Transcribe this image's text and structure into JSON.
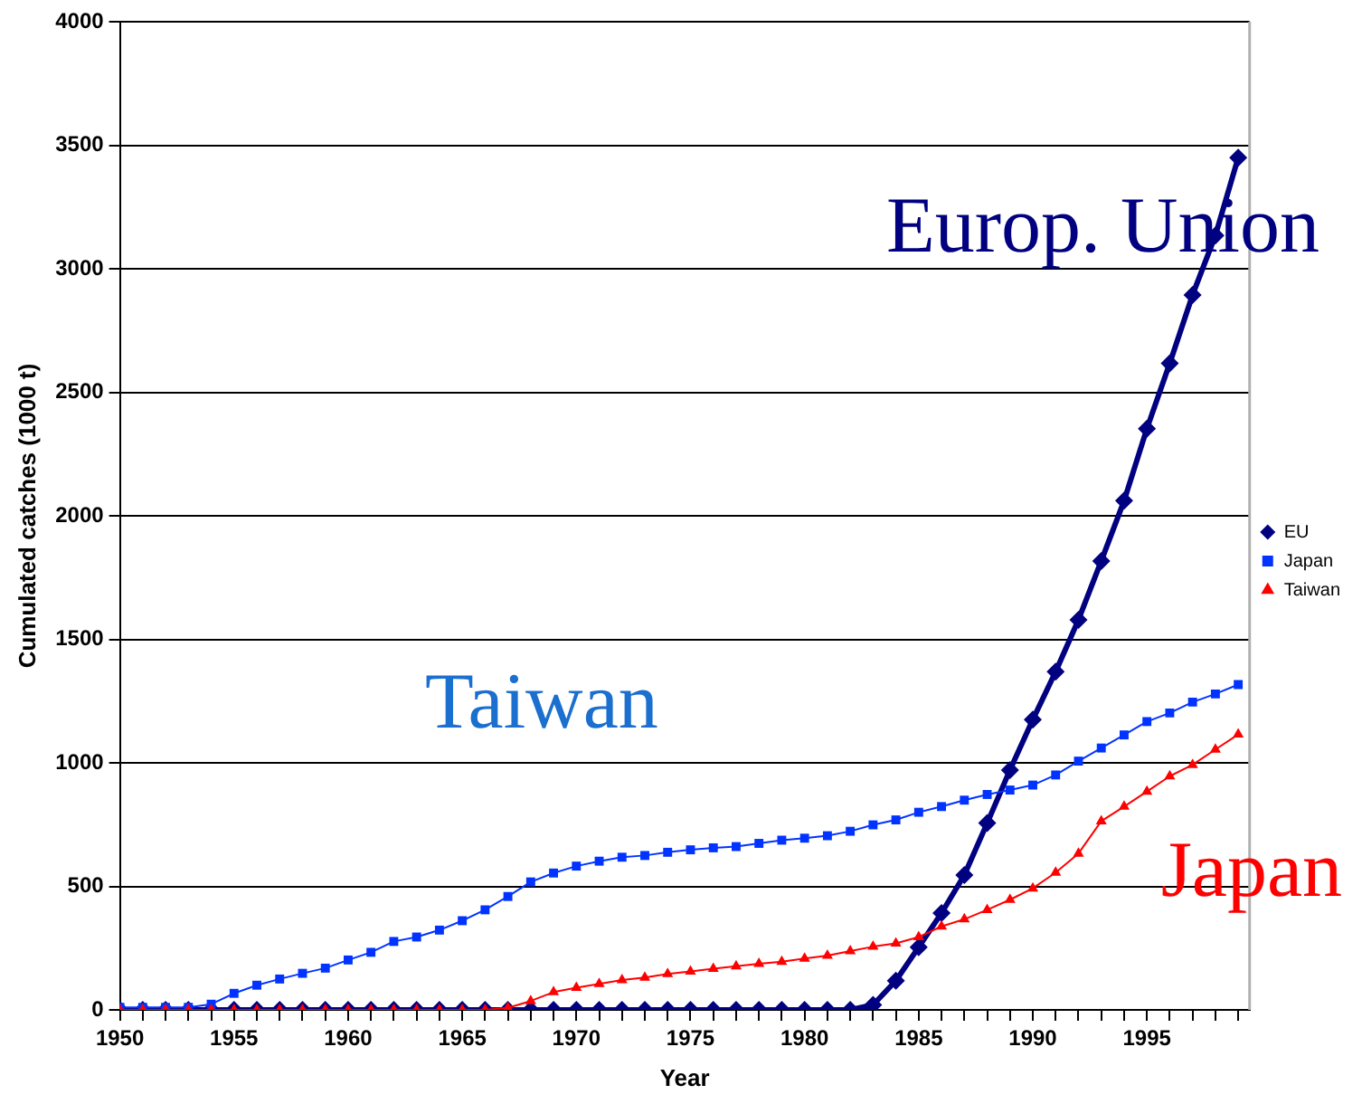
{
  "chart_data": {
    "type": "line",
    "xlabel": "Year",
    "ylabel": "Cumulated catches (1000 t)",
    "x": [
      1950,
      1951,
      1952,
      1953,
      1954,
      1955,
      1956,
      1957,
      1958,
      1959,
      1960,
      1961,
      1962,
      1963,
      1964,
      1965,
      1966,
      1967,
      1968,
      1969,
      1970,
      1971,
      1972,
      1973,
      1974,
      1975,
      1976,
      1977,
      1978,
      1979,
      1980,
      1981,
      1982,
      1983,
      1984,
      1985,
      1986,
      1987,
      1988,
      1989,
      1990,
      1991,
      1992,
      1993,
      1994,
      1995,
      1996,
      1997,
      1998,
      1999
    ],
    "series": [
      {
        "name": "EU",
        "color": "#000080",
        "marker": "diamond",
        "values": [
          0,
          0,
          0,
          0,
          0,
          0,
          0,
          0,
          0,
          0,
          0,
          0,
          0,
          0,
          0,
          0,
          0,
          0,
          0,
          0,
          0,
          0,
          0,
          0,
          0,
          0,
          0,
          0,
          0,
          0,
          0,
          0,
          0,
          20,
          118,
          254,
          392,
          546,
          756,
          971,
          1175,
          1369,
          1579,
          1817,
          2061,
          2353,
          2617,
          2894,
          3135,
          3450
        ]
      },
      {
        "name": "Japan",
        "color": "#0033ff",
        "marker": "square",
        "values": [
          10,
          10,
          10,
          10,
          23,
          67,
          100,
          125,
          148,
          169,
          202,
          233,
          277,
          295,
          323,
          361,
          405,
          459,
          518,
          554,
          582,
          602,
          618,
          625,
          638,
          648,
          656,
          661,
          674,
          687,
          695,
          705,
          723,
          749,
          769,
          800,
          823,
          849,
          872,
          890,
          910,
          951,
          1007,
          1060,
          1113,
          1167,
          1202,
          1246,
          1279,
          1317
        ]
      },
      {
        "name": "Taiwan",
        "color": "#ff0000",
        "marker": "triangle",
        "values": [
          0,
          0,
          0,
          0,
          0,
          0,
          0,
          0,
          0,
          0,
          0,
          0,
          0,
          0,
          0,
          0,
          0,
          8,
          36,
          72,
          90,
          105,
          121,
          131,
          146,
          156,
          167,
          177,
          187,
          195,
          208,
          220,
          238,
          256,
          269,
          295,
          338,
          367,
          405,
          446,
          492,
          556,
          633,
          764,
          823,
          884,
          946,
          992,
          1054,
          1115
        ]
      }
    ],
    "xlim": [
      1950,
      1999.5
    ],
    "xticks": [
      1950,
      {
        "value": 1951,
        "label": null
      },
      {
        "value": 1952,
        "label": null
      },
      {
        "value": 1953,
        "label": null
      },
      {
        "value": 1954,
        "label": null
      },
      1955,
      {
        "value": 1956,
        "label": null
      },
      {
        "value": 1957,
        "label": null
      },
      {
        "value": 1958,
        "label": null
      },
      {
        "value": 1959,
        "label": null
      },
      1960,
      {
        "value": 1961,
        "label": null
      },
      {
        "value": 1962,
        "label": null
      },
      {
        "value": 1963,
        "label": null
      },
      {
        "value": 1964,
        "label": null
      },
      1965,
      {
        "value": 1966,
        "label": null
      },
      {
        "value": 1967,
        "label": null
      },
      {
        "value": 1968,
        "label": null
      },
      {
        "value": 1969,
        "label": null
      },
      1970,
      {
        "value": 1971,
        "label": null
      },
      {
        "value": 1972,
        "label": null
      },
      {
        "value": 1973,
        "label": null
      },
      {
        "value": 1974,
        "label": null
      },
      1975,
      {
        "value": 1976,
        "label": null
      },
      {
        "value": 1977,
        "label": null
      },
      {
        "value": 1978,
        "label": null
      },
      {
        "value": 1979,
        "label": null
      },
      1980,
      {
        "value": 1981,
        "label": null
      },
      {
        "value": 1982,
        "label": null
      },
      {
        "value": 1983,
        "label": null
      },
      {
        "value": 1984,
        "label": null
      },
      1985,
      {
        "value": 1986,
        "label": null
      },
      {
        "value": 1987,
        "label": null
      },
      {
        "value": 1988,
        "label": null
      },
      {
        "value": 1989,
        "label": null
      },
      1990,
      {
        "value": 1991,
        "label": null
      },
      {
        "value": 1992,
        "label": null
      },
      {
        "value": 1993,
        "label": null
      },
      {
        "value": 1994,
        "label": null
      },
      1995,
      {
        "value": 1996,
        "label": null
      },
      {
        "value": 1997,
        "label": null
      },
      {
        "value": 1998,
        "label": null
      },
      {
        "value": 1999,
        "label": null
      }
    ],
    "ylim": [
      0,
      4000
    ],
    "yticks": [
      0,
      500,
      1000,
      1500,
      2000,
      2500,
      3000,
      3500,
      4000
    ],
    "grid": "y",
    "legend": "right",
    "line_style": "solid",
    "annotations": [
      "Europ. Union",
      "Taiwan",
      "Japan"
    ]
  }
}
